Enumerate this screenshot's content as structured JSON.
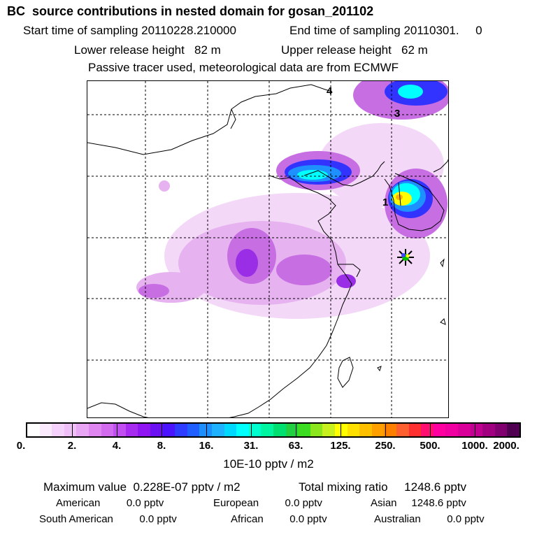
{
  "header": {
    "title": "BC  source contributions in nested domain for gosan_201102",
    "start_label": "Start time of sampling 20110228.210000",
    "end_label": "End time of sampling 20110301.     0",
    "lower_label": "Lower release height   82 m",
    "upper_label": "Upper release height   62 m",
    "tracer_note": "Passive tracer used, meteorological data are from ECMWF"
  },
  "map": {
    "labels": [
      "4",
      "3",
      "1"
    ],
    "marker": "receptor-marker",
    "colors": {
      "pale": "#f3d9f7",
      "light": "#e6b3f0",
      "violet": "#c76ee3",
      "purple": "#9a2ee6",
      "blue": "#3333ff",
      "sky": "#1e90ff",
      "cyan": "#00ffff",
      "teal": "#00e0a0",
      "yellow": "#ffff00",
      "orange": "#ffb000"
    }
  },
  "colorbar": {
    "colors": [
      "#ffffff",
      "#fbeafd",
      "#f5d2fb",
      "#efbff8",
      "#e9a6f5",
      "#df86f1",
      "#d36bee",
      "#c04ef0",
      "#a82cf0",
      "#8f16f2",
      "#6b10f0",
      "#4b14ff",
      "#2e3cff",
      "#1f5fff",
      "#1e8fff",
      "#1fb3ff",
      "#00d9ff",
      "#00ffff",
      "#00ffcf",
      "#00f5a0",
      "#00e070",
      "#20d040",
      "#3cdc20",
      "#8ce61e",
      "#c8f01e",
      "#ffff00",
      "#ffe000",
      "#ffc000",
      "#ffa000",
      "#ff8000",
      "#ff6030",
      "#ff3030",
      "#ff1070",
      "#ff00a0",
      "#f000a0",
      "#d80098",
      "#c00090",
      "#a00080",
      "#800070",
      "#500050"
    ],
    "tick_labels": [
      "0.",
      "2.",
      "4.",
      "8.",
      "16.",
      "31.",
      "63.",
      "125.",
      "250.",
      "500.",
      "1000.",
      "2000."
    ],
    "unit": "10E-10 pptv / m2"
  },
  "summary": {
    "max_label": "Maximum value  0.228E-07 pptv / m2",
    "total_label": "Total mixing ratio     1248.6 pptv",
    "american": "American         0.0 pptv",
    "european": "European         0.0 pptv",
    "asian": "Asian     1248.6 pptv",
    "south_american": "South American         0.0 pptv",
    "african": "African         0.0 pptv",
    "australian": "Australian         0.0 pptv"
  }
}
